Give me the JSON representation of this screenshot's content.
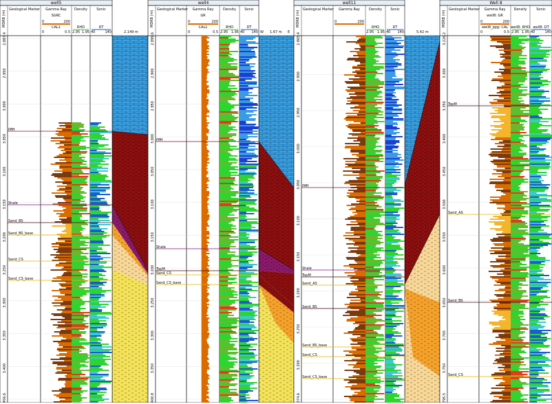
{
  "wells": [
    {
      "name": "well5",
      "depth_label": "MDRB (m)",
      "col_marker": "Geological Marker",
      "col_gr": "Gamma Ray",
      "col_den": "Density",
      "col_son": "Sonic",
      "gr_curve": "SGRC",
      "cal_curve": "CAL1",
      "den_curve": "RHO",
      "son_curve": "DT",
      "gr_min": "0",
      "gr_max": "200",
      "cal_min": "0",
      "cal_max": "0.5",
      "den_min": "2.95",
      "den_max": "1.95",
      "son_min": "40",
      "son_max": "140",
      "depth_ticks": [
        "2.887.4",
        "2.950",
        "3.000",
        "3.050",
        "3.100",
        "3.150",
        "3.200",
        "3.250",
        "3.300",
        "3.350",
        "3.400",
        "3.456.6"
      ],
      "markers": [
        "IMH",
        "Shale",
        "Sand_BS",
        "Sand_BS_base",
        "Sand_CS",
        "Sand_CS_base"
      ]
    },
    {
      "name": "well4",
      "depth_label": "MDRB (m)",
      "col_marker": "Geological Marker",
      "col_gr": "Gamma Ray",
      "col_den": "Density",
      "col_son": "Sonic",
      "gr_curve": "GR",
      "cal_curve": "CAL1",
      "den_curve": "RHO",
      "son_curve": "DT",
      "gr_min": "0",
      "gr_max": "200",
      "cal_min": "0",
      "cal_max": "0.5",
      "den_min": "2.95",
      "den_max": "1.95",
      "son_min": "40",
      "son_max": "140",
      "depth_ticks": [
        "2.899.6",
        "2.900",
        "2.950",
        "3.000",
        "3.050",
        "3.100",
        "3.150",
        "3.200",
        "3.250",
        "3.300",
        "3.350",
        "3.400.8"
      ],
      "markers": [
        "IMH",
        "Shale",
        "TopM",
        "Sand_CS",
        "Sand_CS_base"
      ]
    },
    {
      "name": "well11",
      "depth_label": "MDRB (m)",
      "col_marker": "Geological Marker",
      "col_gr": "Gamma Ray",
      "col_den": "Density",
      "col_son": "Sonic",
      "gr_curve": "",
      "cal_curve": "",
      "den_curve": "RHO",
      "son_curve": "DT",
      "gr_min": "0",
      "gr_max": "200",
      "cal_min": "",
      "cal_max": "",
      "den_min": "2.95",
      "den_max": "1.95",
      "son_min": "40",
      "son_max": "140",
      "depth_ticks": [
        "2.865.4",
        "2.900",
        "2.950",
        "3.000",
        "3.050",
        "3.100",
        "3.150",
        "3.200",
        "3.250",
        "3.300",
        "3.374.6"
      ],
      "markers": [
        "IMH",
        "Shale",
        "TopM",
        "Sand_AS",
        "Sand_BS",
        "Sand_BS_base",
        "Sand_CS",
        "Sand_CS_base"
      ]
    },
    {
      "name": "Well 8",
      "depth_label": "MDRB (m)",
      "col_marker": "Geological Marker",
      "col_gr": "Gamma Ray",
      "col_den": "Density",
      "col_son": "Sonic",
      "gr_curve": "well8: GR",
      "cal_curve": "well8_ppg: CAL",
      "den_curve": "well8: RHO",
      "son_curve": "well8: DT",
      "gr_min": "0",
      "gr_max": "200",
      "cal_min": "0",
      "cal_max": "0.5",
      "den_min": "2.95",
      "den_max": "1.95",
      "son_min": "40",
      "son_max": "140",
      "depth_ticks": [
        "3.226.2",
        "3.300",
        "3.350",
        "3.400",
        "3.450",
        "3.500",
        "3.550",
        "3.600",
        "3.650",
        "3.700",
        "3.750",
        "3.795.5"
      ],
      "markers": [
        "TopM",
        "Sand_AS",
        "Sand_BS",
        "Sand_CS"
      ]
    }
  ],
  "spacings": [
    "2.149 m",
    "1.67 m",
    "5.42 m"
  ],
  "spacing_dirs": [
    "W",
    "E"
  ],
  "colors": {
    "limestone": "#3aa3e3",
    "shale": "#8a0f0f",
    "shale_purple": "#8a1a6a",
    "sand": "#f4e35a",
    "sand_orange": "#f4a22a",
    "sand_light": "#f8d79a",
    "gr_fill": "#d96b00",
    "density": "#2fd52f",
    "sonic": "#1c5bd1"
  }
}
